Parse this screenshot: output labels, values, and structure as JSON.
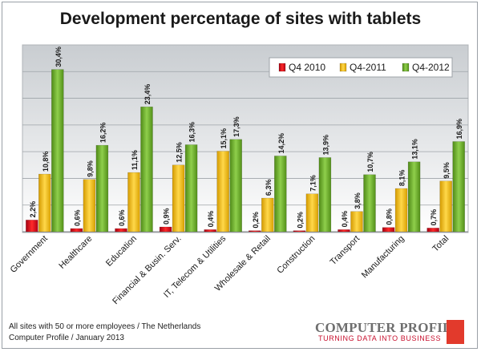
{
  "chart_data": {
    "type": "bar",
    "title": "Development percentage of sites with tablets",
    "categories": [
      "Government",
      "Healthcare",
      "Education",
      "Financial & Busin. Serv.",
      "IT, Telecom & Utilities",
      "Wholesale & Retail",
      "Construction",
      "Transport",
      "Manufacturing",
      "Total"
    ],
    "series": [
      {
        "name": "Q4 2010",
        "color": "#e3001b",
        "values": [
          2.2,
          0.6,
          0.6,
          0.9,
          0.4,
          0.2,
          0.2,
          0.4,
          0.8,
          0.7
        ],
        "labels": [
          "2,2%",
          "0,6%",
          "0,6%",
          "0,9%",
          "0,4%",
          "0,2%",
          "0,2%",
          "0,4%",
          "0,8%",
          "0,7%"
        ]
      },
      {
        "name": "Q4-2011",
        "color": "#ffc000",
        "values": [
          10.8,
          9.8,
          11.1,
          12.5,
          15.1,
          6.3,
          7.1,
          3.8,
          8.1,
          9.5
        ],
        "labels": [
          "10,8%",
          "9,8%",
          "11,1%",
          "12,5%",
          "15,1%",
          "6,3%",
          "7,1%",
          "3,8%",
          "8,1%",
          "9,5%"
        ]
      },
      {
        "name": "Q4-2012",
        "color": "#70ad28",
        "values": [
          30.4,
          16.2,
          23.4,
          16.3,
          17.3,
          14.2,
          13.9,
          10.7,
          13.1,
          16.9
        ],
        "labels": [
          "30,4%",
          "16,2%",
          "23,4%",
          "16,3%",
          "17,3%",
          "14,2%",
          "13,9%",
          "10,7%",
          "13,1%",
          "16,9%"
        ]
      }
    ],
    "ylim": [
      0,
      35
    ],
    "gridlines": true,
    "legend_position": "top-right"
  },
  "footer": {
    "line1": "All sites with 50 or more employees / The Netherlands",
    "line2": "Computer Profile / January 2013"
  },
  "logo": {
    "name": "COMPUTER PROFILE",
    "tagline": "TURNING DATA INTO BUSINESS"
  }
}
